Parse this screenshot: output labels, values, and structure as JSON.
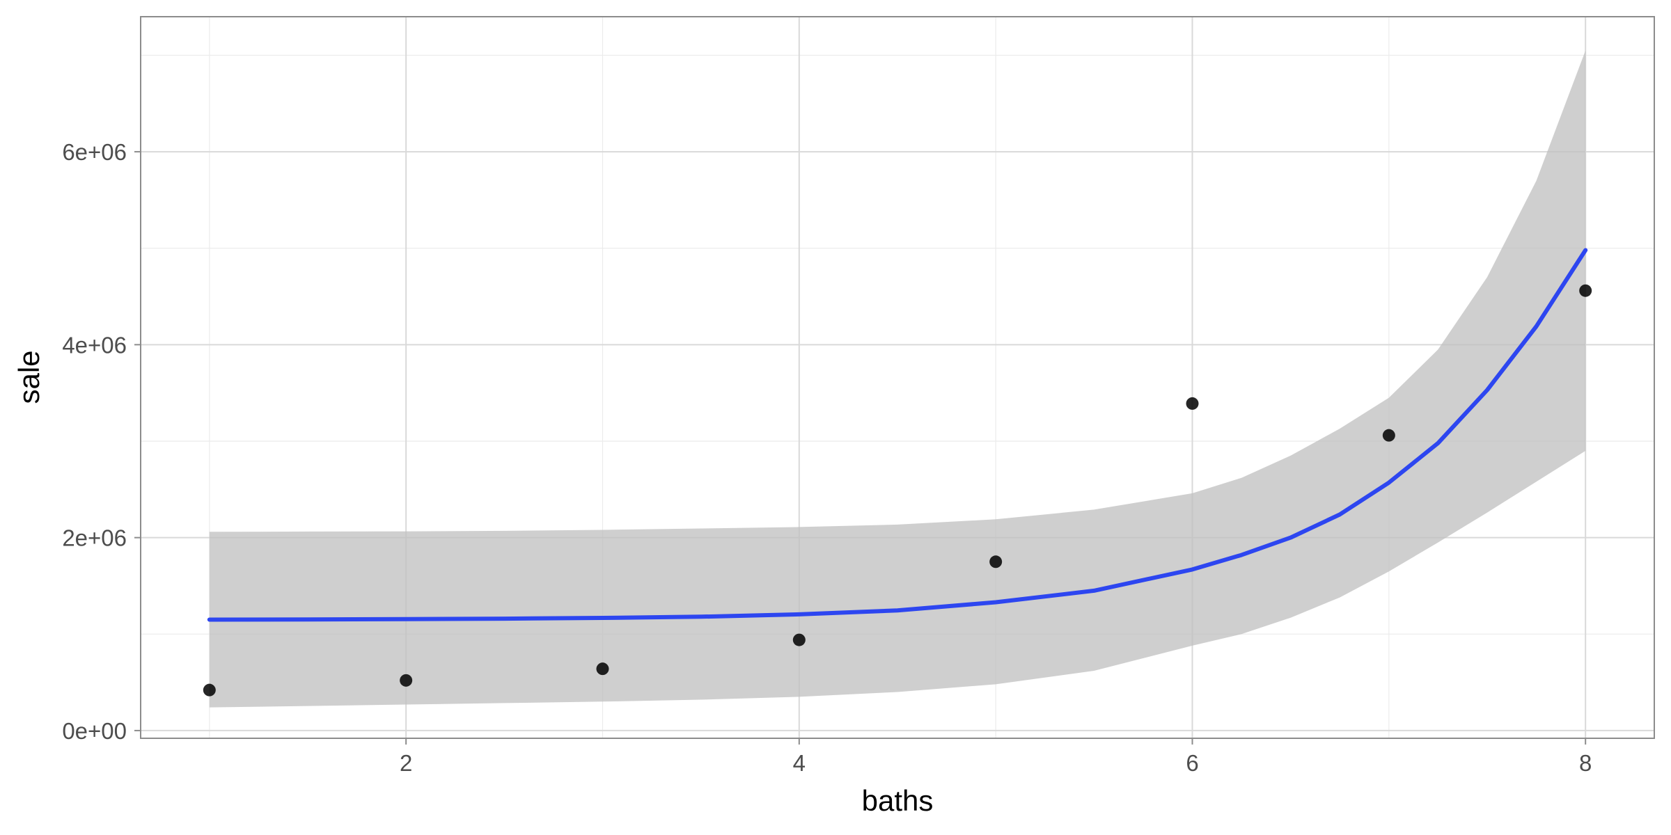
{
  "chart_data": {
    "type": "scatter",
    "xlabel": "baths",
    "ylabel": "sale",
    "xlim": [
      0.65,
      8.35
    ],
    "ylim": [
      -80000,
      7400000
    ],
    "x_ticks": [
      2,
      4,
      6,
      8
    ],
    "x_tick_labels": [
      "2",
      "4",
      "6",
      "8"
    ],
    "x_minor_ticks": [
      1,
      3,
      5,
      7
    ],
    "y_ticks": [
      0,
      2000000,
      4000000,
      6000000
    ],
    "y_tick_labels": [
      "0e+00",
      "2e+06",
      "4e+06",
      "6e+06"
    ],
    "y_minor_ticks": [
      1000000,
      3000000,
      5000000,
      7000000
    ],
    "grid": true,
    "legend": "none",
    "points": {
      "x": [
        1,
        2,
        3,
        4,
        5,
        6,
        7,
        8
      ],
      "y": [
        420000,
        520000,
        640000,
        940000,
        1750000,
        3390000,
        3060000,
        4560000
      ],
      "color": "#000000"
    },
    "smooth": {
      "method": "exponential fit with confidence band",
      "x": [
        1,
        1.5,
        2,
        2.5,
        3,
        3.5,
        4,
        4.5,
        5,
        5.5,
        6,
        6.25,
        6.5,
        6.75,
        7,
        7.25,
        7.5,
        7.75,
        8
      ],
      "fit": [
        1150000,
        1152000,
        1155000,
        1160000,
        1168000,
        1180000,
        1205000,
        1245000,
        1330000,
        1450000,
        1670000,
        1820000,
        2000000,
        2240000,
        2570000,
        2980000,
        3530000,
        4190000,
        4980000
      ],
      "lower": [
        240000,
        255000,
        270000,
        285000,
        300000,
        320000,
        350000,
        400000,
        480000,
        620000,
        880000,
        1000000,
        1170000,
        1380000,
        1650000,
        1950000,
        2260000,
        2580000,
        2900000
      ],
      "upper": [
        2060000,
        2063000,
        2065000,
        2070000,
        2080000,
        2095000,
        2110000,
        2135000,
        2190000,
        2290000,
        2460000,
        2620000,
        2850000,
        3130000,
        3450000,
        3950000,
        4700000,
        5700000,
        7050000
      ],
      "line_color": "#2d46f0",
      "band_color": "#bfbfbf"
    }
  }
}
